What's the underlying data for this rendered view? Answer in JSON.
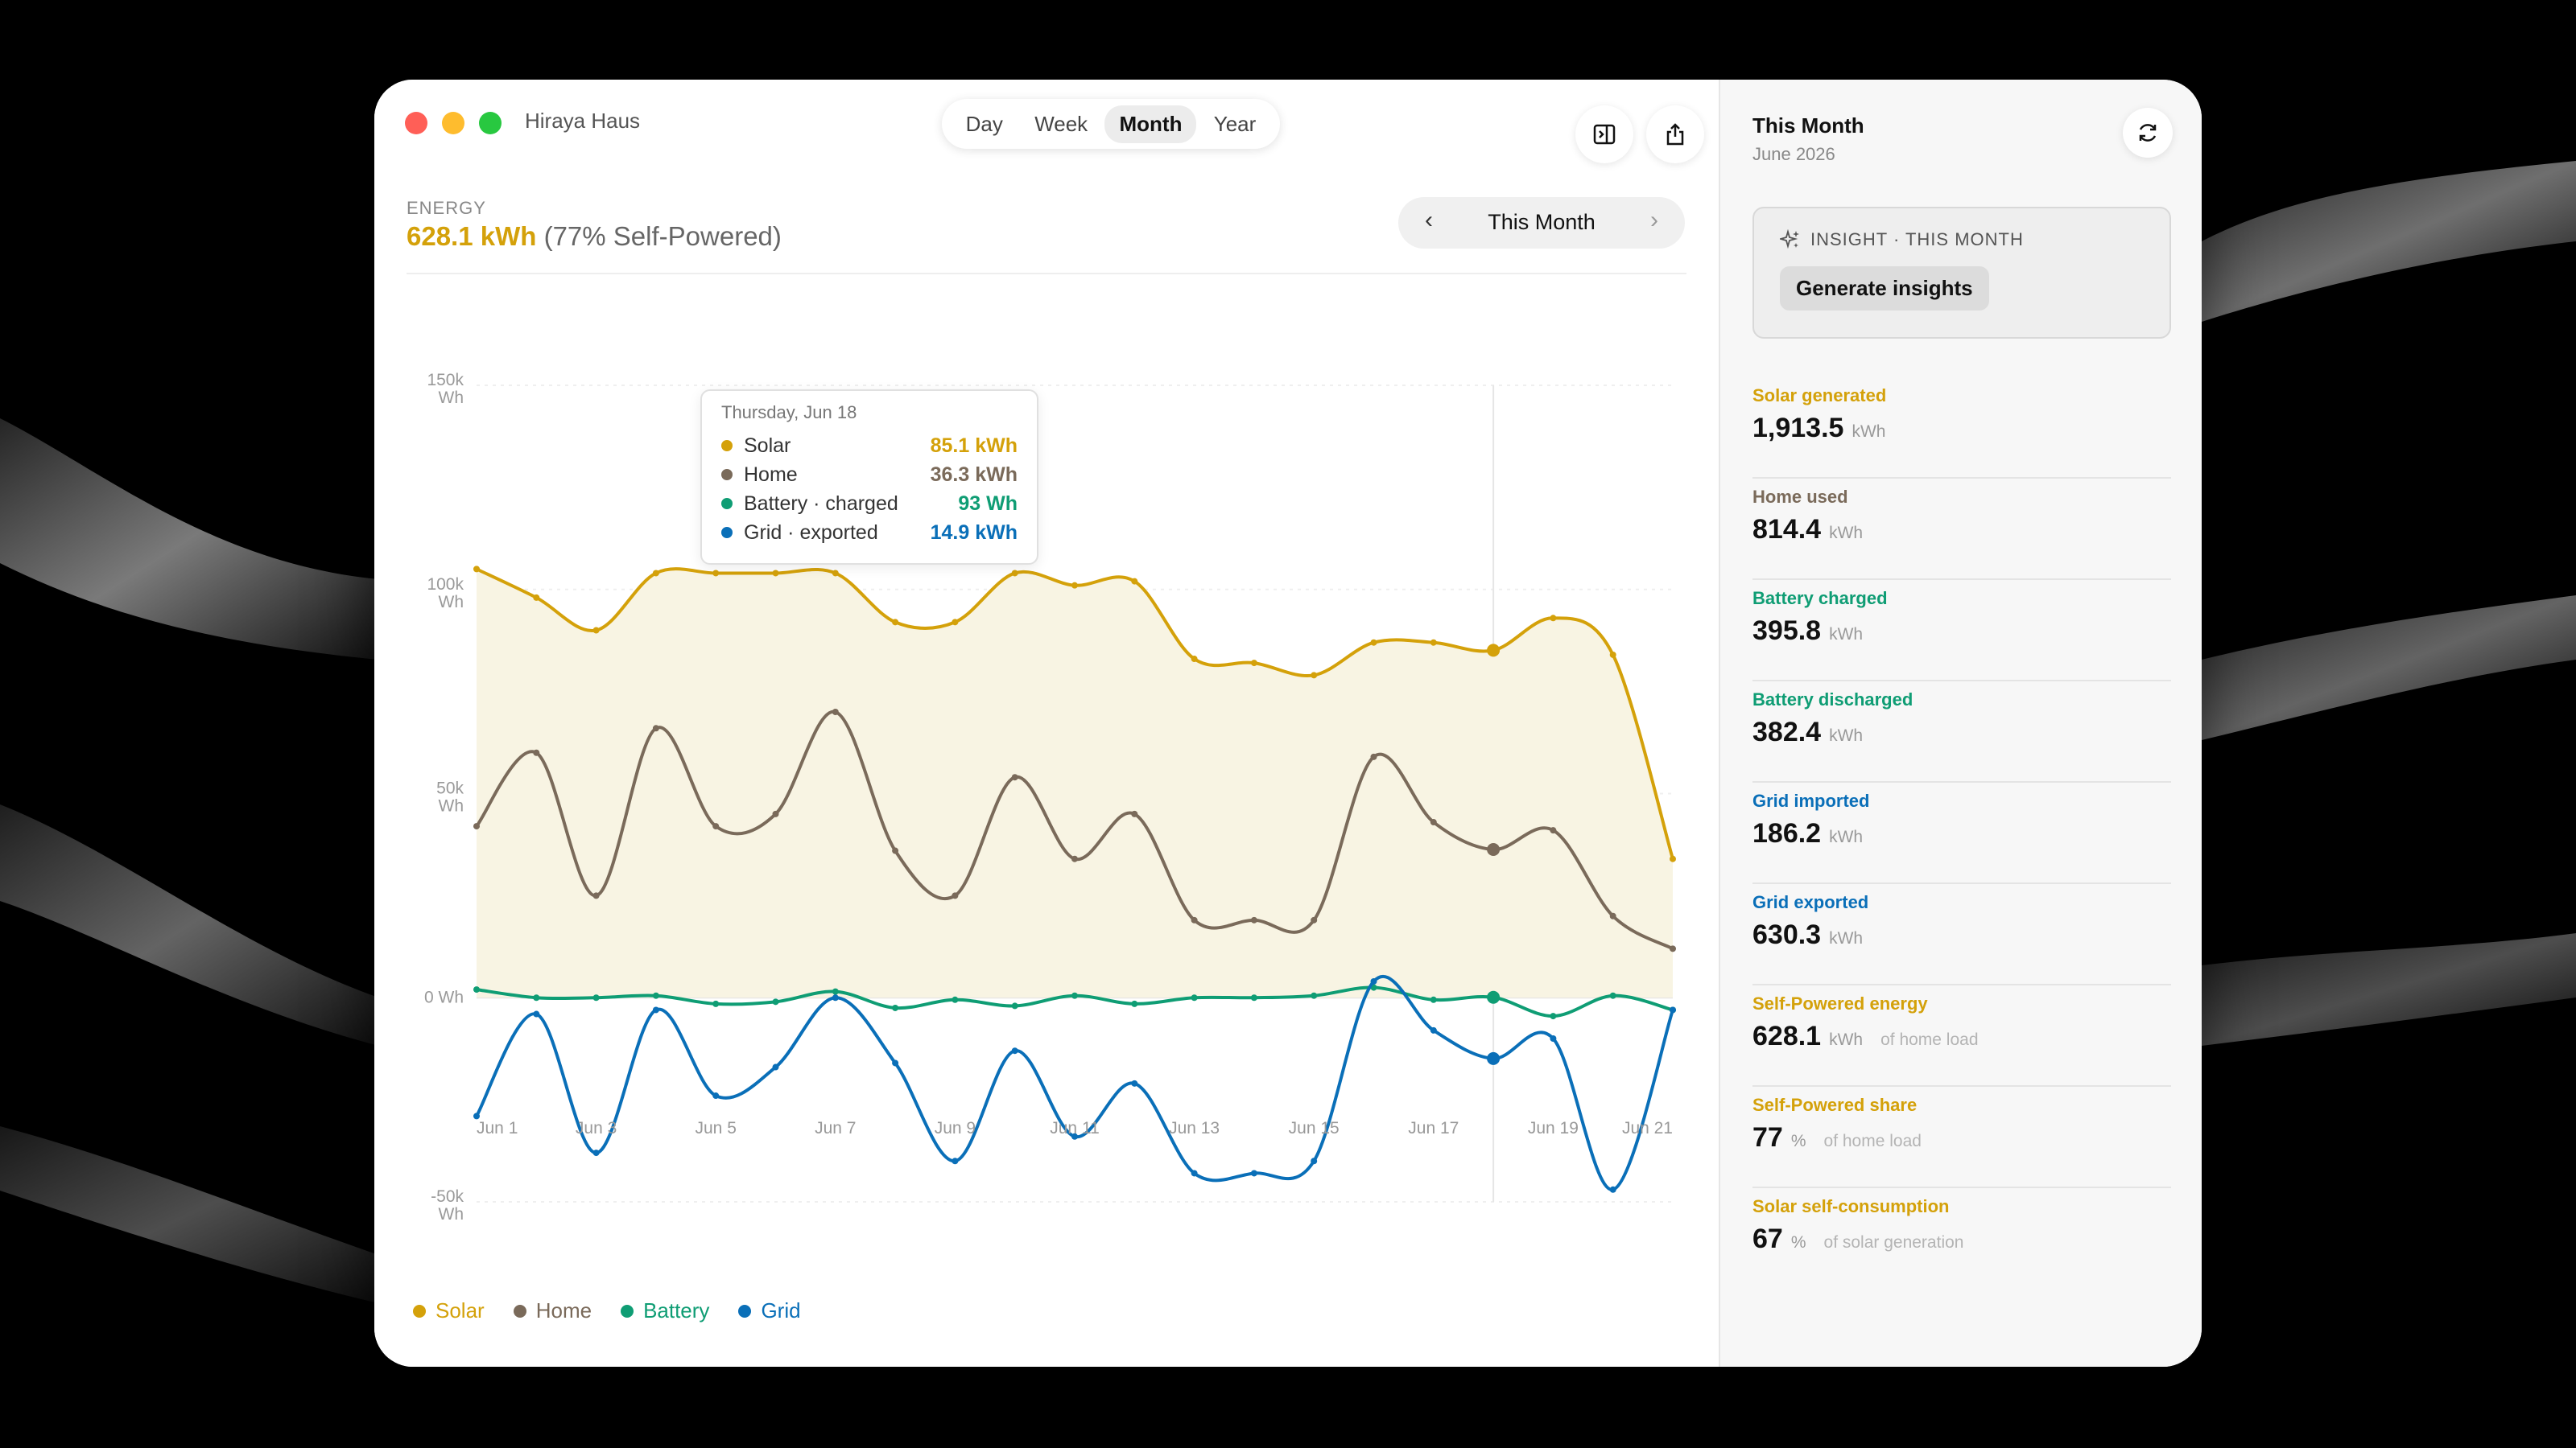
{
  "window": {
    "app_name": "Hiraya Haus"
  },
  "toolbar": {
    "segments": [
      "Day",
      "Week",
      "Month",
      "Year"
    ],
    "active_segment": "Month"
  },
  "summary": {
    "label": "ENERGY",
    "total": "628.1 kWh",
    "self_powered": "(77% Self-Powered)"
  },
  "period_nav": {
    "label": "This Month"
  },
  "tooltip": {
    "date": "Thursday, Jun 18",
    "rows": [
      {
        "name": "Solar",
        "value": "85.1 kWh",
        "color": "#d4a10a"
      },
      {
        "name": "Home",
        "value": "36.3 kWh",
        "color": "#7a6a5a"
      },
      {
        "name": "Battery · charged",
        "value": "93 Wh",
        "color": "#0f9d74"
      },
      {
        "name": "Grid · exported",
        "value": "14.9 kWh",
        "color": "#0a6fb8"
      }
    ]
  },
  "legend": [
    {
      "name": "Solar",
      "color": "#d4a10a"
    },
    {
      "name": "Home",
      "color": "#7a6a5a"
    },
    {
      "name": "Battery",
      "color": "#0f9d74"
    },
    {
      "name": "Grid",
      "color": "#0a6fb8"
    }
  ],
  "chart_data": {
    "type": "line",
    "x": [
      "Jun 1",
      "Jun 2",
      "Jun 3",
      "Jun 4",
      "Jun 5",
      "Jun 6",
      "Jun 7",
      "Jun 8",
      "Jun 9",
      "Jun 10",
      "Jun 11",
      "Jun 12",
      "Jun 13",
      "Jun 14",
      "Jun 15",
      "Jun 16",
      "Jun 17",
      "Jun 18",
      "Jun 19",
      "Jun 20",
      "Jun 21"
    ],
    "x_tick_labels": [
      "Jun 1",
      "Jun 3",
      "Jun 5",
      "Jun 7",
      "Jun 9",
      "Jun 11",
      "Jun 13",
      "Jun 15",
      "Jun 17",
      "Jun 19",
      "Jun 21"
    ],
    "y_ticks": [
      {
        "value": 150000,
        "label": [
          "150k",
          "Wh"
        ]
      },
      {
        "value": 100000,
        "label": [
          "100k",
          "Wh"
        ]
      },
      {
        "value": 50000,
        "label": [
          "50k",
          "Wh"
        ]
      },
      {
        "value": 0,
        "label": [
          "0 Wh"
        ]
      },
      {
        "value": -50000,
        "label": [
          "-50k",
          "Wh"
        ]
      }
    ],
    "ylim": [
      -50000,
      150000
    ],
    "highlight": "Jun 18",
    "series": [
      {
        "name": "Solar",
        "color": "#d4a10a",
        "area": true,
        "values": [
          105000,
          98000,
          90000,
          104000,
          104000,
          104000,
          104000,
          92000,
          92000,
          104000,
          101000,
          102000,
          83000,
          82000,
          79000,
          87000,
          87000,
          85100,
          93000,
          84000,
          34000
        ]
      },
      {
        "name": "Home",
        "color": "#7a6a5a",
        "values": [
          42000,
          60000,
          25000,
          66000,
          42000,
          45000,
          70000,
          36000,
          25000,
          54000,
          34000,
          45000,
          19000,
          19000,
          19000,
          59000,
          43000,
          36300,
          41000,
          20000,
          12000
        ]
      },
      {
        "name": "Battery",
        "color": "#0f9d74",
        "values": [
          2000,
          0,
          0,
          500,
          -1500,
          -1000,
          1500,
          -2500,
          -500,
          -2000,
          500,
          -1500,
          0,
          0,
          500,
          2500,
          -500,
          93,
          -4500,
          500,
          -3000
        ]
      },
      {
        "name": "Grid",
        "color": "#0a6fb8",
        "values": [
          -29000,
          -4000,
          -38000,
          -3000,
          -24000,
          -17000,
          0,
          -16000,
          -40000,
          -13000,
          -34000,
          -21000,
          -43000,
          -43000,
          -40000,
          4000,
          -8000,
          -14900,
          -10000,
          -47000,
          -3000
        ]
      }
    ]
  },
  "sidebar": {
    "title": "This Month",
    "subtitle": "June 2026",
    "insight": {
      "heading": "INSIGHT · THIS MONTH",
      "button": "Generate insights"
    },
    "stats": [
      {
        "label": "Solar generated",
        "value": "1,913.5",
        "unit": "kWh",
        "note": "",
        "color": "#d4a10a"
      },
      {
        "label": "Home used",
        "value": "814.4",
        "unit": "kWh",
        "note": "",
        "color": "#7a6a5a"
      },
      {
        "label": "Battery charged",
        "value": "395.8",
        "unit": "kWh",
        "note": "",
        "color": "#0f9d74"
      },
      {
        "label": "Battery discharged",
        "value": "382.4",
        "unit": "kWh",
        "note": "",
        "color": "#0f9d74"
      },
      {
        "label": "Grid imported",
        "value": "186.2",
        "unit": "kWh",
        "note": "",
        "color": "#0a6fb8"
      },
      {
        "label": "Grid exported",
        "value": "630.3",
        "unit": "kWh",
        "note": "",
        "color": "#0a6fb8"
      },
      {
        "label": "Self-Powered energy",
        "value": "628.1",
        "unit": "kWh",
        "note": "of home load",
        "color": "#d4a10a"
      },
      {
        "label": "Self-Powered share",
        "value": "77",
        "unit": "%",
        "note": "of home load",
        "color": "#d4a10a"
      },
      {
        "label": "Solar self-consumption",
        "value": "67",
        "unit": "%",
        "note": "of solar generation",
        "color": "#d4a10a"
      }
    ]
  }
}
